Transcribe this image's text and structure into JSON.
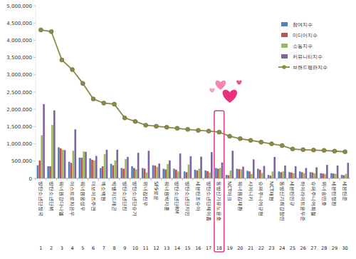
{
  "chart_data": {
    "type": "bar",
    "categories": [
      "방탄소년단정국",
      "방탄소년단뷔",
      "워너원강다니엘",
      "아스트로차은우",
      "워너원옹성우",
      "더보이즈주연",
      "엑소백현",
      "빅뱅지드래곤",
      "방탄소년단진",
      "방탄소년단슈가",
      "위너김진우",
      "SF9로운",
      "워너원박지훈",
      "방탄소년단RM",
      "방탄소년단지민",
      "세븐틴조슈아",
      "방탄소년단제이홉",
      "동방신기유노윤호",
      "NCT마크",
      "워너원김재환",
      "샤이니키",
      "슈퍼주니어규현",
      "NCT재현",
      "동방신기최강창민",
      "세븐틴민규",
      "하이라이트윤두준",
      "슈퍼주니어희철",
      "위너송민호",
      "세븐틴정한",
      "세븐틴준"
    ],
    "ranks": [
      1,
      2,
      3,
      4,
      5,
      6,
      7,
      8,
      9,
      10,
      11,
      12,
      13,
      14,
      15,
      16,
      17,
      18,
      19,
      20,
      21,
      22,
      23,
      24,
      25,
      26,
      27,
      28,
      29,
      30
    ],
    "series": [
      {
        "name": "참여지수",
        "color": "#4f81bd",
        "type": "bar",
        "values": [
          380000,
          350000,
          900000,
          480000,
          600000,
          580000,
          300000,
          420000,
          300000,
          350000,
          300000,
          380000,
          280000,
          280000,
          200000,
          250000,
          230000,
          300000,
          100000,
          280000,
          220000,
          280000,
          100000,
          200000,
          180000,
          200000,
          180000,
          150000,
          150000,
          100000
        ]
      },
      {
        "name": "미디어지수",
        "color": "#c0504d",
        "type": "bar",
        "values": [
          520000,
          350000,
          870000,
          450000,
          600000,
          540000,
          350000,
          380000,
          280000,
          300000,
          280000,
          370000,
          260000,
          250000,
          180000,
          230000,
          210000,
          280000,
          90000,
          270000,
          200000,
          250000,
          80000,
          180000,
          170000,
          180000,
          170000,
          140000,
          140000,
          90000
        ]
      },
      {
        "name": "소통지수",
        "color": "#9bbb59",
        "type": "bar",
        "values": [
          1250000,
          1550000,
          830000,
          800000,
          780000,
          520000,
          700000,
          520000,
          560000,
          260000,
          170000,
          330000,
          420000,
          200000,
          400000,
          280000,
          170000,
          300000,
          230000,
          260000,
          130000,
          160000,
          200000,
          200000,
          150000,
          150000,
          150000,
          130000,
          130000,
          130000
        ]
      },
      {
        "name": "커뮤니티지수",
        "color": "#8064a2",
        "type": "bar",
        "values": [
          2150000,
          1970000,
          820000,
          1420000,
          770000,
          650000,
          830000,
          830000,
          620000,
          740000,
          800000,
          430000,
          520000,
          720000,
          640000,
          630000,
          760000,
          460000,
          800000,
          340000,
          550000,
          360000,
          620000,
          370000,
          350000,
          300000,
          320000,
          390000,
          370000,
          450000
        ]
      },
      {
        "name": "브랜드평판지수",
        "color": "#8c8a4a",
        "type": "line",
        "marker": "circle",
        "values": [
          4300000,
          4250000,
          3430000,
          3150000,
          2750000,
          2300000,
          2180000,
          2150000,
          1750000,
          1650000,
          1540000,
          1510000,
          1480000,
          1450000,
          1420000,
          1390000,
          1370000,
          1340000,
          1220000,
          1150000,
          1100000,
          1050000,
          1000000,
          950000,
          850000,
          830000,
          820000,
          810000,
          790000,
          770000
        ]
      }
    ],
    "ylim": [
      0,
      5000000
    ],
    "yticks": [
      0,
      {
        "value": 500000,
        "label": "500,000"
      },
      {
        "value": 1000000,
        "label": "1,000,000"
      },
      {
        "value": 1500000,
        "label": "1,500,000"
      },
      {
        "value": 2000000,
        "label": "2,000,000"
      },
      {
        "value": 2500000,
        "label": "2,500,000"
      },
      {
        "value": 3000000,
        "label": "3,000,000"
      },
      {
        "value": 3500000,
        "label": "3,500,000"
      },
      {
        "value": 4000000,
        "label": "4,000,000"
      },
      {
        "value": 4500000,
        "label": "4,500,000"
      },
      {
        "value": 5000000,
        "label": "5,000,000"
      }
    ],
    "grid": false,
    "legend": "top-right"
  }
}
